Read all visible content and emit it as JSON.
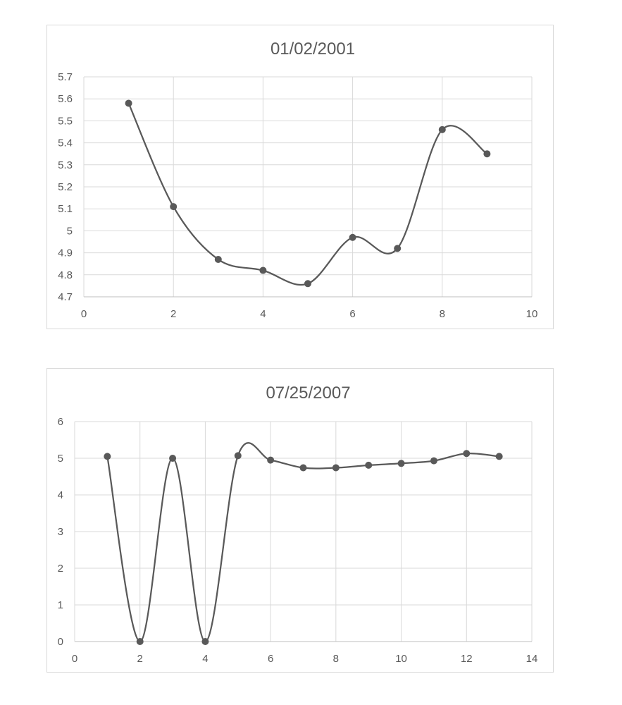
{
  "chart_data": [
    {
      "type": "scatter",
      "title": "01/02/2001",
      "xlabel": "",
      "ylabel": "",
      "xlim": [
        0,
        10
      ],
      "ylim": [
        4.7,
        5.7
      ],
      "x_ticks": [
        "0",
        "2",
        "4",
        "6",
        "8",
        "10"
      ],
      "y_ticks": [
        "4.7",
        "4.8",
        "4.9",
        "5",
        "5.1",
        "5.2",
        "5.3",
        "5.4",
        "5.5",
        "5.6",
        "5.7"
      ],
      "grid": true,
      "smooth": true,
      "legend": "none",
      "line_color": "#595959",
      "series": [
        {
          "x": [
            1,
            2,
            3,
            4,
            5,
            6,
            7,
            8,
            9
          ],
          "y": [
            5.58,
            5.11,
            4.87,
            4.82,
            4.76,
            4.97,
            4.92,
            5.46,
            5.35
          ]
        }
      ]
    },
    {
      "type": "scatter",
      "title": "07/25/2007",
      "xlabel": "",
      "ylabel": "",
      "xlim": [
        0,
        14
      ],
      "ylim": [
        0,
        6
      ],
      "x_ticks": [
        "0",
        "2",
        "4",
        "6",
        "8",
        "10",
        "12",
        "14"
      ],
      "y_ticks": [
        "0",
        "1",
        "2",
        "3",
        "4",
        "5",
        "6"
      ],
      "grid": true,
      "smooth": true,
      "legend": "none",
      "line_color": "#595959",
      "series": [
        {
          "x": [
            1,
            2,
            3,
            4,
            5,
            6,
            7,
            8,
            9,
            10,
            11,
            12,
            13
          ],
          "y": [
            5.05,
            0,
            5.0,
            0,
            5.07,
            4.95,
            4.74,
            4.74,
            4.81,
            4.86,
            4.93,
            5.13,
            5.05
          ]
        }
      ]
    }
  ]
}
